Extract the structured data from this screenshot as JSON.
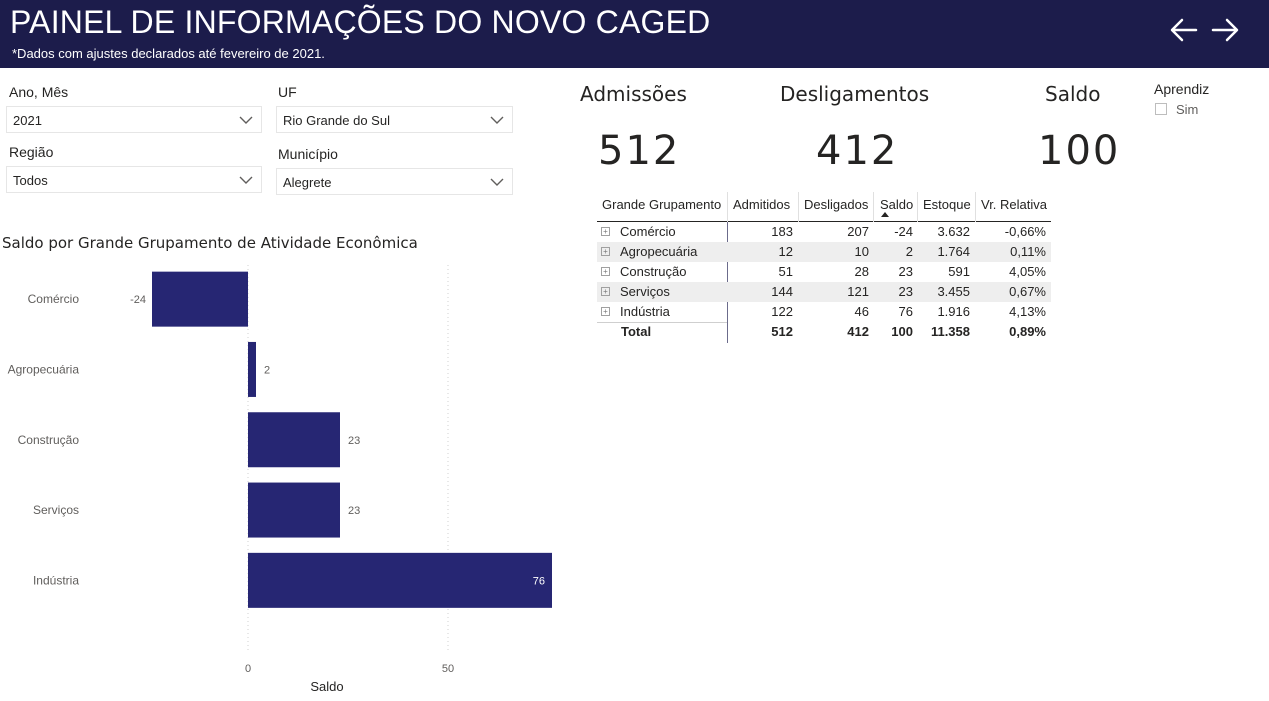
{
  "header": {
    "title": "PAINEL DE INFORMAÇÕES DO NOVO CAGED",
    "subtitle": "*Dados com ajustes declarados até fevereiro de 2021.",
    "back_icon": "arrow-left-icon",
    "forward_icon": "arrow-right-icon"
  },
  "filters": {
    "ano_mes": {
      "label": "Ano, Mês",
      "value": "2021"
    },
    "uf": {
      "label": "UF",
      "value": "Rio Grande do Sul"
    },
    "regiao": {
      "label": "Região",
      "value": "Todos"
    },
    "municipio": {
      "label": "Município",
      "value": "Alegrete"
    },
    "aprendiz": {
      "label": "Aprendiz",
      "option": "Sim",
      "checked": false
    }
  },
  "kpis": {
    "admissoes": {
      "label": "Admissões",
      "value": "512"
    },
    "desligamentos": {
      "label": "Desligamentos",
      "value": "412"
    },
    "saldo": {
      "label": "Saldo",
      "value": "100"
    }
  },
  "table": {
    "columns": [
      "Grande Grupamento",
      "Admitidos",
      "Desligados",
      "Saldo",
      "Estoque",
      "Vr. Relativa"
    ],
    "rows": [
      [
        "Comércio",
        "183",
        "207",
        "-24",
        "3.632",
        "-0,66%"
      ],
      [
        "Agropecuária",
        "12",
        "10",
        "2",
        "1.764",
        "0,11%"
      ],
      [
        "Construção",
        "51",
        "28",
        "23",
        "591",
        "4,05%"
      ],
      [
        "Serviços",
        "144",
        "121",
        "23",
        "3.455",
        "0,67%"
      ],
      [
        "Indústria",
        "122",
        "46",
        "76",
        "1.916",
        "4,13%"
      ]
    ],
    "total": [
      "Total",
      "512",
      "412",
      "100",
      "11.358",
      "0,89%"
    ],
    "expand_symbol": "+"
  },
  "chart_title": "Saldo por Grande Grupamento de Atividade Econômica",
  "chart_data": {
    "type": "bar",
    "orientation": "horizontal",
    "title": "Saldo por Grande Grupamento de Atividade Econômica",
    "categories": [
      "Comércio",
      "Agropecuária",
      "Construção",
      "Serviços",
      "Indústria"
    ],
    "values": [
      -24,
      2,
      23,
      23,
      76
    ],
    "xlabel": "Saldo",
    "ylabel": "",
    "xlim": [
      -24,
      76
    ],
    "x_ticks": [
      0,
      50
    ],
    "data_labels": true,
    "bar_color": "#262673",
    "grid": true
  },
  "colors": {
    "header_bg": "#1c1c4b",
    "bar": "#262673"
  }
}
